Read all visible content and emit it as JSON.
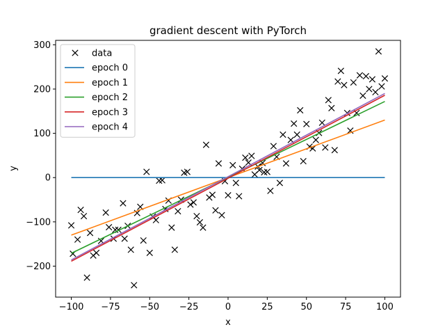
{
  "chart_data": {
    "type": "line",
    "title": "gradient descent with PyTorch",
    "xlabel": "x",
    "ylabel": "y",
    "xlim": [
      -110,
      110
    ],
    "ylim": [
      -270,
      310
    ],
    "xticks": [
      -100,
      -75,
      -50,
      -25,
      0,
      25,
      50,
      75,
      100
    ],
    "yticks": [
      -200,
      -100,
      0,
      100,
      200,
      300
    ],
    "grid": false,
    "legend_position": "top-left",
    "scatter": {
      "name": "data",
      "marker": "x",
      "color": "#000000",
      "points": [
        [
          -100,
          -108
        ],
        [
          -99,
          -172
        ],
        [
          -96,
          -140
        ],
        [
          -94,
          -73
        ],
        [
          -92,
          -87
        ],
        [
          -90,
          -226
        ],
        [
          -88,
          -125
        ],
        [
          -86,
          -176
        ],
        [
          -84,
          -170
        ],
        [
          -81,
          -143
        ],
        [
          -78,
          -79
        ],
        [
          -76,
          -112
        ],
        [
          -73,
          -138
        ],
        [
          -72,
          -118
        ],
        [
          -70,
          -118
        ],
        [
          -67,
          -58
        ],
        [
          -66,
          -138
        ],
        [
          -64,
          -109
        ],
        [
          -62,
          -163
        ],
        [
          -60,
          -243
        ],
        [
          -58,
          -80
        ],
        [
          -56,
          -66
        ],
        [
          -54,
          -142
        ],
        [
          -52,
          13
        ],
        [
          -50,
          -170
        ],
        [
          -48,
          -88
        ],
        [
          -46,
          -96
        ],
        [
          -44,
          -7
        ],
        [
          -42,
          -6
        ],
        [
          -40,
          -71
        ],
        [
          -38,
          -52
        ],
        [
          -36,
          -113
        ],
        [
          -34,
          -163
        ],
        [
          -32,
          -76
        ],
        [
          -30,
          -50
        ],
        [
          -28,
          11
        ],
        [
          -26,
          13
        ],
        [
          -24,
          -61
        ],
        [
          -22,
          -56
        ],
        [
          -20,
          -87
        ],
        [
          -18,
          -101
        ],
        [
          -16,
          -113
        ],
        [
          -14,
          74
        ],
        [
          -12,
          -45
        ],
        [
          -10,
          -39
        ],
        [
          -8,
          -74
        ],
        [
          -6,
          32
        ],
        [
          -4,
          -85
        ],
        [
          -2,
          -8
        ],
        [
          0,
          -40
        ],
        [
          3,
          28
        ],
        [
          5,
          -12
        ],
        [
          7,
          -42
        ],
        [
          9,
          20
        ],
        [
          11,
          45
        ],
        [
          13,
          34
        ],
        [
          15,
          49
        ],
        [
          17,
          7
        ],
        [
          19,
          25
        ],
        [
          20,
          17
        ],
        [
          22,
          33
        ],
        [
          23,
          12
        ],
        [
          25,
          13
        ],
        [
          27,
          -30
        ],
        [
          29,
          71
        ],
        [
          31,
          47
        ],
        [
          33,
          -12
        ],
        [
          35,
          97
        ],
        [
          37,
          32
        ],
        [
          40,
          85
        ],
        [
          42,
          122
        ],
        [
          44,
          97
        ],
        [
          46,
          152
        ],
        [
          48,
          37
        ],
        [
          50,
          121
        ],
        [
          52,
          70
        ],
        [
          54,
          66
        ],
        [
          56,
          85
        ],
        [
          58,
          101
        ],
        [
          60,
          124
        ],
        [
          62,
          68
        ],
        [
          64,
          175
        ],
        [
          66,
          157
        ],
        [
          68,
          62
        ],
        [
          70,
          217
        ],
        [
          72,
          241
        ],
        [
          74,
          209
        ],
        [
          76,
          146
        ],
        [
          78,
          106
        ],
        [
          80,
          215
        ],
        [
          82,
          146
        ],
        [
          84,
          231
        ],
        [
          86,
          185
        ],
        [
          88,
          229
        ],
        [
          90,
          200
        ],
        [
          92,
          222
        ],
        [
          94,
          193
        ],
        [
          96,
          285
        ],
        [
          98,
          206
        ],
        [
          100,
          224
        ]
      ]
    },
    "series": [
      {
        "name": "epoch 0",
        "color": "#1f77b4",
        "x": [
          -100,
          100
        ],
        "y": [
          0,
          0
        ]
      },
      {
        "name": "epoch 1",
        "color": "#ff7f0e",
        "x": [
          -100,
          100
        ],
        "y": [
          -130,
          130
        ]
      },
      {
        "name": "epoch 2",
        "color": "#2ca02c",
        "x": [
          -100,
          100
        ],
        "y": [
          -171,
          172
        ]
      },
      {
        "name": "epoch 3",
        "color": "#d62728",
        "x": [
          -100,
          100
        ],
        "y": [
          -189,
          186
        ]
      },
      {
        "name": "epoch 4",
        "color": "#9467bd",
        "x": [
          -100,
          100
        ],
        "y": [
          -186,
          190
        ]
      }
    ]
  }
}
